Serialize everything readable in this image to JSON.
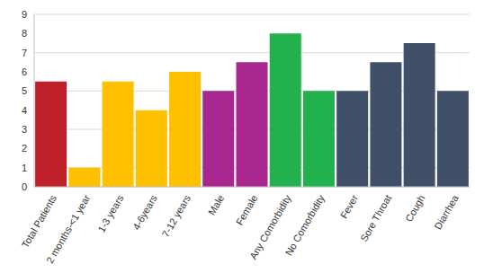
{
  "chart_data": {
    "type": "bar",
    "categories": [
      "Total Patients",
      "2 months-<1 year",
      "1-3 years",
      "4-6years",
      "7-12 years",
      "Male",
      "Female",
      "Any Comorbidity",
      "No Comorbidity",
      "Fever",
      "Sore Throat",
      "Cough",
      "Diarrhea"
    ],
    "values": [
      5.5,
      1,
      5.5,
      4,
      6,
      5,
      6.5,
      8,
      5,
      5,
      6.5,
      7.5,
      5
    ],
    "colors": [
      "#c0202a",
      "#ffc000",
      "#ffc000",
      "#ffc000",
      "#ffc000",
      "#a8278f",
      "#a8278f",
      "#22b14c",
      "#22b14c",
      "#3f5068",
      "#3f5068",
      "#3f5068",
      "#3f5068"
    ],
    "ylim": [
      0,
      9
    ],
    "yticks": [
      0,
      1,
      2,
      3,
      4,
      5,
      6,
      7,
      8,
      9
    ],
    "grid": true
  }
}
